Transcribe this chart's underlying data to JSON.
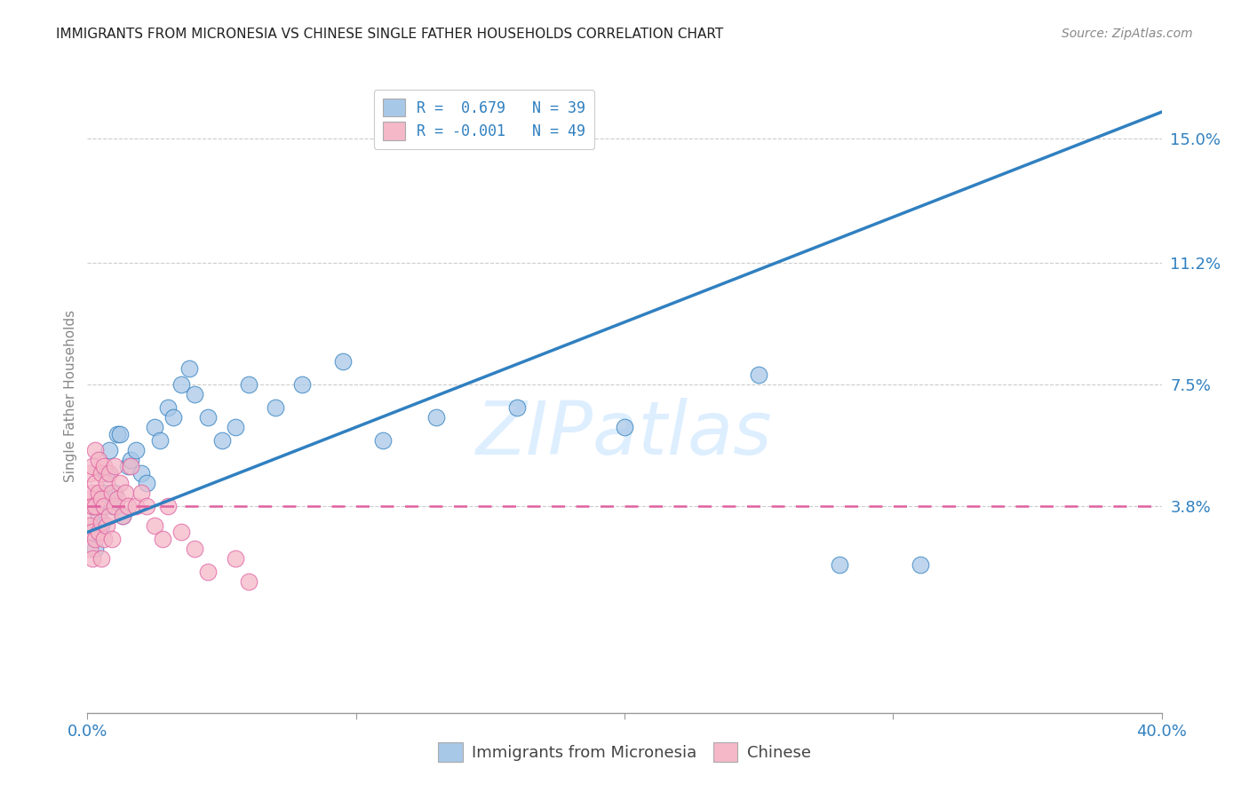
{
  "title": "IMMIGRANTS FROM MICRONESIA VS CHINESE SINGLE FATHER HOUSEHOLDS CORRELATION CHART",
  "source": "Source: ZipAtlas.com",
  "ylabel": "Single Father Households",
  "yticks": [
    "15.0%",
    "11.2%",
    "7.5%",
    "3.8%"
  ],
  "ytick_vals": [
    0.15,
    0.112,
    0.075,
    0.038
  ],
  "xmin": 0.0,
  "xmax": 0.4,
  "ymin": -0.025,
  "ymax": 0.168,
  "legend_blue_label": "Immigrants from Micronesia",
  "legend_pink_label": "Chinese",
  "legend_blue_R": "R =  0.679",
  "legend_blue_N": "N = 39",
  "legend_pink_R": "R = -0.001",
  "legend_pink_N": "N = 49",
  "blue_color": "#a8c8e8",
  "pink_color": "#f4b8c8",
  "blue_line_color": "#3080c0",
  "pink_line_color": "#e060a0",
  "watermark_color": "#ddeeff",
  "background_color": "#ffffff",
  "blue_points_x": [
    0.001,
    0.002,
    0.003,
    0.004,
    0.005,
    0.006,
    0.007,
    0.008,
    0.009,
    0.01,
    0.011,
    0.012,
    0.013,
    0.015,
    0.016,
    0.018,
    0.02,
    0.022,
    0.025,
    0.027,
    0.03,
    0.032,
    0.035,
    0.038,
    0.04,
    0.045,
    0.05,
    0.055,
    0.06,
    0.07,
    0.08,
    0.095,
    0.11,
    0.13,
    0.16,
    0.2,
    0.25,
    0.28,
    0.31
  ],
  "blue_points_y": [
    0.03,
    0.038,
    0.025,
    0.035,
    0.032,
    0.042,
    0.048,
    0.055,
    0.038,
    0.042,
    0.06,
    0.06,
    0.035,
    0.05,
    0.052,
    0.055,
    0.048,
    0.045,
    0.062,
    0.058,
    0.068,
    0.065,
    0.075,
    0.08,
    0.072,
    0.065,
    0.058,
    0.062,
    0.075,
    0.068,
    0.075,
    0.082,
    0.058,
    0.065,
    0.068,
    0.062,
    0.078,
    0.02,
    0.02
  ],
  "pink_points_x": [
    0.001,
    0.001,
    0.001,
    0.001,
    0.001,
    0.002,
    0.002,
    0.002,
    0.002,
    0.002,
    0.003,
    0.003,
    0.003,
    0.003,
    0.004,
    0.004,
    0.004,
    0.005,
    0.005,
    0.005,
    0.005,
    0.006,
    0.006,
    0.006,
    0.007,
    0.007,
    0.008,
    0.008,
    0.009,
    0.009,
    0.01,
    0.01,
    0.011,
    0.012,
    0.013,
    0.014,
    0.015,
    0.016,
    0.018,
    0.02,
    0.022,
    0.025,
    0.028,
    0.03,
    0.035,
    0.04,
    0.045,
    0.055,
    0.06
  ],
  "pink_points_y": [
    0.048,
    0.04,
    0.035,
    0.032,
    0.025,
    0.05,
    0.042,
    0.038,
    0.03,
    0.022,
    0.055,
    0.045,
    0.038,
    0.028,
    0.052,
    0.042,
    0.03,
    0.048,
    0.04,
    0.033,
    0.022,
    0.05,
    0.038,
    0.028,
    0.045,
    0.032,
    0.048,
    0.035,
    0.042,
    0.028,
    0.05,
    0.038,
    0.04,
    0.045,
    0.035,
    0.042,
    0.038,
    0.05,
    0.038,
    0.042,
    0.038,
    0.032,
    0.028,
    0.038,
    0.03,
    0.025,
    0.018,
    0.022,
    0.015
  ],
  "blue_line_x0": 0.0,
  "blue_line_y0": 0.03,
  "blue_line_x1": 0.4,
  "blue_line_y1": 0.158,
  "pink_line_x0": 0.0,
  "pink_line_y0": 0.038,
  "pink_line_x1": 0.4,
  "pink_line_y1": 0.038
}
